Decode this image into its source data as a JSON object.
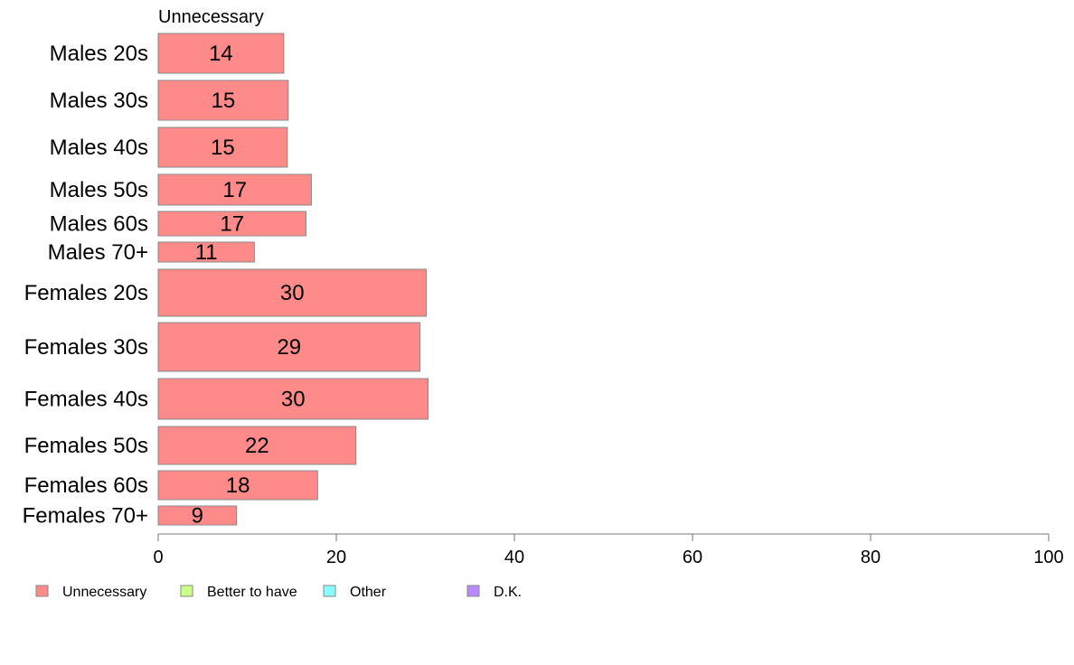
{
  "chart_data": {
    "type": "bar",
    "orientation": "horizontal",
    "series_title": "Unnecessary",
    "categories": [
      "Males 20s",
      "Males 30s",
      "Males 40s",
      "Males 50s",
      "Males 60s",
      "Males 70+",
      "Females 20s",
      "Females 30s",
      "Females 40s",
      "Females 50s",
      "Females 60s",
      "Females 70+"
    ],
    "series": [
      {
        "name": "Unnecessary",
        "values": [
          14.1,
          14.6,
          14.5,
          17.2,
          16.6,
          10.8,
          30.1,
          29.4,
          30.3,
          22.2,
          17.9,
          8.8
        ],
        "data_labels": [
          "14",
          "15",
          "15",
          "17",
          "17",
          "11",
          "30",
          "29",
          "30",
          "22",
          "18",
          "9"
        ],
        "color": "#ff8a8a"
      }
    ],
    "xlim": [
      0,
      100
    ],
    "x_ticks": [
      0,
      20,
      40,
      60,
      80,
      100
    ],
    "x_tick_labels": [
      "0",
      "20",
      "40",
      "60",
      "80",
      "100"
    ],
    "grid": false,
    "legend": {
      "position": "bottom-left",
      "items": [
        {
          "label": "Unnecessary",
          "color": "#ff8a8a"
        },
        {
          "label": "Better to have",
          "color": "#ccff88"
        },
        {
          "label": "Other",
          "color": "#88ffff"
        },
        {
          "label": "D.K.",
          "color": "#bb88ff"
        }
      ]
    },
    "colors": {
      "bar_stroke": "#888888",
      "axis": "#777777"
    }
  }
}
